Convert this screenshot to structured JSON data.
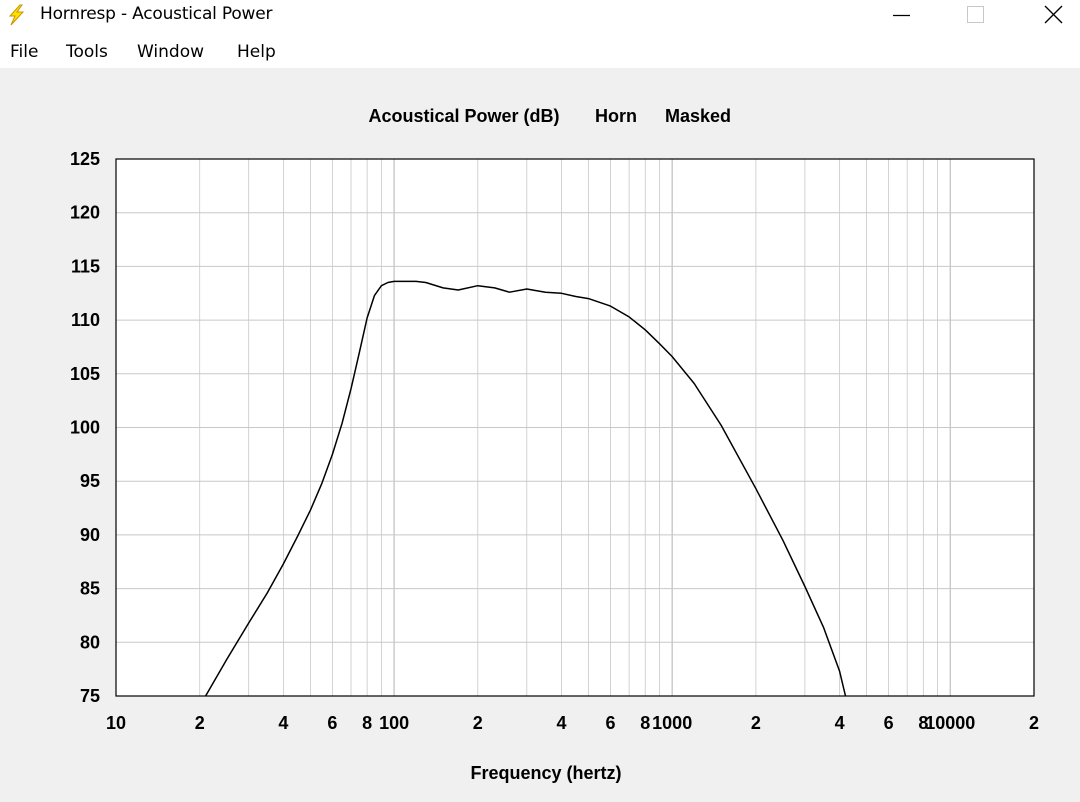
{
  "window": {
    "title": "Hornresp - Acoustical Power",
    "icons": {
      "app": "lightning-bolt-icon",
      "minimize": "minimize-icon",
      "maximize": "maximize-icon",
      "close": "close-icon"
    }
  },
  "menu": [
    {
      "label": "File"
    },
    {
      "label": "Tools"
    },
    {
      "label": "Window"
    },
    {
      "label": "Help"
    }
  ],
  "colors": {
    "background": "#f0f0f0",
    "plot": "#ffffff",
    "grid": "#c8c8c8",
    "curve": "#000000"
  },
  "chart_data": {
    "type": "line",
    "title_parts": [
      "Acoustical Power (dB)",
      "Horn",
      "Masked"
    ],
    "xlabel": "Frequency (hertz)",
    "ylabel": "",
    "x_scale": "log",
    "xlim": [
      10,
      20000
    ],
    "ylim": [
      75,
      125
    ],
    "grid": true,
    "y_ticks": [
      75,
      80,
      85,
      90,
      95,
      100,
      105,
      110,
      115,
      120,
      125
    ],
    "x_tick_labels": [
      {
        "value": 10,
        "label": "10"
      },
      {
        "value": 20,
        "label": "2"
      },
      {
        "value": 40,
        "label": "4"
      },
      {
        "value": 60,
        "label": "6"
      },
      {
        "value": 80,
        "label": "8"
      },
      {
        "value": 100,
        "label": "100"
      },
      {
        "value": 200,
        "label": "2"
      },
      {
        "value": 400,
        "label": "4"
      },
      {
        "value": 600,
        "label": "6"
      },
      {
        "value": 800,
        "label": "8"
      },
      {
        "value": 1000,
        "label": "1000"
      },
      {
        "value": 2000,
        "label": "2"
      },
      {
        "value": 4000,
        "label": "4"
      },
      {
        "value": 6000,
        "label": "6"
      },
      {
        "value": 8000,
        "label": "8"
      },
      {
        "value": 10000,
        "label": "10000"
      },
      {
        "value": 20000,
        "label": "2"
      }
    ],
    "series": [
      {
        "x": [
          21,
          25,
          30,
          35,
          40,
          45,
          50,
          55,
          60,
          65,
          70,
          75,
          80,
          85,
          90,
          95,
          100,
          110,
          120,
          130,
          150,
          170,
          200,
          230,
          260,
          300,
          350,
          400,
          450,
          500,
          600,
          700,
          800,
          900,
          1000,
          1200,
          1500,
          2000,
          2500,
          3000,
          3500,
          4000,
          4200
        ],
        "y": [
          75,
          78.4,
          81.8,
          84.6,
          87.3,
          89.9,
          92.3,
          94.8,
          97.5,
          100.4,
          103.6,
          107.0,
          110.2,
          112.3,
          113.2,
          113.5,
          113.6,
          113.6,
          113.6,
          113.5,
          113.0,
          112.8,
          113.2,
          113.0,
          112.6,
          112.9,
          112.6,
          112.5,
          112.2,
          112.0,
          111.3,
          110.3,
          109.1,
          107.8,
          106.6,
          104.1,
          100.2,
          94.3,
          89.5,
          85.2,
          81.4,
          77.3,
          75.0
        ]
      }
    ]
  }
}
